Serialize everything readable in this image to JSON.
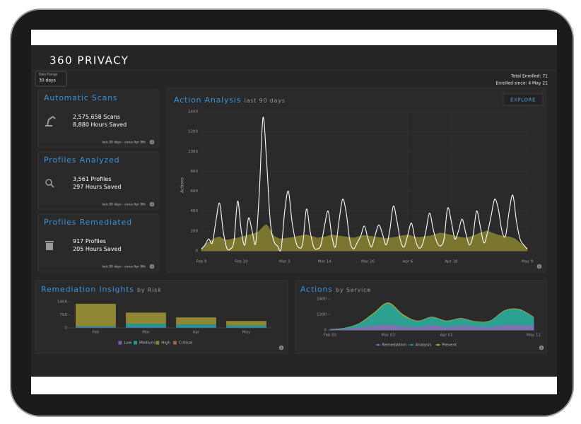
{
  "header": {
    "title": "360 PRIVACY"
  },
  "date_range": {
    "label": "Date Range",
    "value": "30 days"
  },
  "enrollment": {
    "total": "Total Enrolled: 71",
    "since": "Enrolled since: 4 May 21"
  },
  "cards": [
    {
      "title": "Automatic Scans",
      "icon": "robot",
      "lines": [
        {
          "value": "2,575,658",
          "unit": "Scans"
        },
        {
          "value": "8,880",
          "unit": "Hours Saved"
        }
      ],
      "footnote": "last 30 days - since Apr 9th"
    },
    {
      "title": "Profiles Analyzed",
      "icon": "search",
      "lines": [
        {
          "value": "3,561",
          "unit": "Profiles"
        },
        {
          "value": "297",
          "unit": "Hours Saved"
        }
      ],
      "footnote": "last 30 days - since Apr 9th"
    },
    {
      "title": "Profiles Remediated",
      "icon": "trash",
      "lines": [
        {
          "value": "917",
          "unit": "Profiles"
        },
        {
          "value": "205",
          "unit": "Hours Saved"
        }
      ],
      "footnote": "last 30 days - since Apr 9th"
    }
  ],
  "chart_data": [
    {
      "type": "line",
      "title": "Action Analysis",
      "subtitle": "last 90 days",
      "button": "EXPLORE",
      "ylabel": "Actions",
      "grid": true,
      "categories": [
        "Feb 8",
        null,
        null,
        null,
        null,
        null,
        null,
        null,
        null,
        null,
        null,
        "Feb 19",
        null,
        null,
        null,
        null,
        null,
        null,
        null,
        null,
        null,
        null,
        null,
        "Mar 3",
        null,
        null,
        null,
        null,
        null,
        null,
        null,
        null,
        null,
        null,
        "Mar 14",
        null,
        null,
        null,
        null,
        null,
        null,
        null,
        null,
        null,
        null,
        null,
        "Mar 26",
        null,
        null,
        null,
        null,
        null,
        null,
        null,
        null,
        null,
        null,
        "Apr 6",
        null,
        null,
        null,
        null,
        null,
        null,
        null,
        null,
        null,
        null,
        null,
        "Apr 18",
        null,
        null,
        null,
        null,
        null,
        null,
        null,
        null,
        null,
        null,
        null,
        null,
        null,
        null,
        null,
        null,
        null,
        null,
        null,
        null,
        "May 9"
      ],
      "series": [
        {
          "style": "area",
          "color": "#8a8430",
          "values": [
            20,
            60,
            90,
            110,
            130,
            140,
            120,
            110,
            115,
            125,
            130,
            140,
            150,
            160,
            170,
            180,
            200,
            240,
            260,
            210,
            150,
            130,
            120,
            125,
            130,
            135,
            140,
            150,
            155,
            160,
            150,
            140,
            130,
            135,
            140,
            150,
            160,
            155,
            150,
            145,
            140,
            135,
            130,
            140,
            150,
            155,
            150,
            145,
            140,
            135,
            130,
            125,
            130,
            135,
            140,
            150,
            155,
            160,
            150,
            140,
            135,
            140,
            145,
            150,
            160,
            170,
            180,
            175,
            165,
            160,
            150,
            140,
            135,
            130,
            140,
            150,
            165,
            180,
            190,
            200,
            185,
            170,
            160,
            150,
            145,
            140,
            130,
            110,
            80,
            50,
            20
          ]
        },
        {
          "style": "line",
          "color": "#ffffff",
          "values": [
            20,
            60,
            120,
            80,
            300,
            480,
            200,
            30,
            20,
            100,
            500,
            200,
            60,
            330,
            200,
            80,
            600,
            1340,
            900,
            300,
            100,
            50,
            20,
            400,
            600,
            300,
            100,
            30,
            80,
            420,
            200,
            40,
            20,
            60,
            250,
            400,
            150,
            40,
            300,
            520,
            380,
            100,
            20,
            80,
            150,
            250,
            120,
            40,
            160,
            260,
            170,
            60,
            200,
            450,
            300,
            100,
            40,
            160,
            280,
            120,
            30,
            60,
            200,
            380,
            220,
            90,
            50,
            120,
            430,
            300,
            120,
            200,
            320,
            180,
            60,
            150,
            400,
            250,
            80,
            180,
            350,
            520,
            420,
            200,
            150,
            400,
            560,
            300,
            120,
            60,
            20
          ]
        }
      ],
      "ylim": [
        0,
        1400
      ],
      "yticks": [
        0,
        200,
        400,
        600,
        800,
        1000,
        1200,
        1400
      ]
    },
    {
      "type": "bar",
      "stacked": true,
      "title": "Remediation Insights",
      "subtitle": "by Risk",
      "grid": false,
      "legend": "bottom",
      "categories": [
        "Feb",
        "Mar",
        "Apr",
        "May"
      ],
      "series": [
        {
          "name": "Low",
          "color": "#7b5ea7",
          "values": [
            30,
            30,
            30,
            20
          ]
        },
        {
          "name": "Medium",
          "color": "#1a9a9a",
          "values": [
            50,
            180,
            150,
            100
          ]
        },
        {
          "name": "High",
          "color": "#8f8733",
          "values": [
            1210,
            610,
            380,
            250
          ]
        },
        {
          "name": "Critical",
          "color": "#a0614a",
          "values": [
            0,
            0,
            0,
            0
          ]
        }
      ],
      "ylim": [
        0,
        1400
      ],
      "yticks": [
        0,
        700,
        1400
      ]
    },
    {
      "type": "area",
      "title": "Actions",
      "subtitle": "by Service",
      "grid": false,
      "legend": "bottom",
      "categories": [
        "Feb 02",
        null,
        null,
        null,
        "Mar 03",
        null,
        null,
        null,
        "Apr 01",
        null,
        null,
        null,
        null,
        null,
        "May 11"
      ],
      "series": [
        {
          "name": "Remediation",
          "color": "#8b6bb5",
          "values": [
            20,
            60,
            150,
            300,
            400,
            250,
            200,
            350,
            200,
            300,
            250,
            200,
            350,
            350,
            300
          ]
        },
        {
          "name": "Analysis",
          "color": "#17a2a2",
          "values": [
            40,
            120,
            450,
            1200,
            2000,
            1100,
            650,
            950,
            650,
            850,
            600,
            650,
            1450,
            1550,
            950
          ]
        },
        {
          "name": "Prevent",
          "color": "#b7b13c",
          "values": [
            50,
            150,
            500,
            1300,
            2100,
            1200,
            700,
            1000,
            700,
            900,
            650,
            700,
            1500,
            1600,
            1000
          ]
        }
      ],
      "ylim": [
        0,
        2400
      ],
      "yticks": [
        0,
        1200,
        2400
      ]
    }
  ]
}
